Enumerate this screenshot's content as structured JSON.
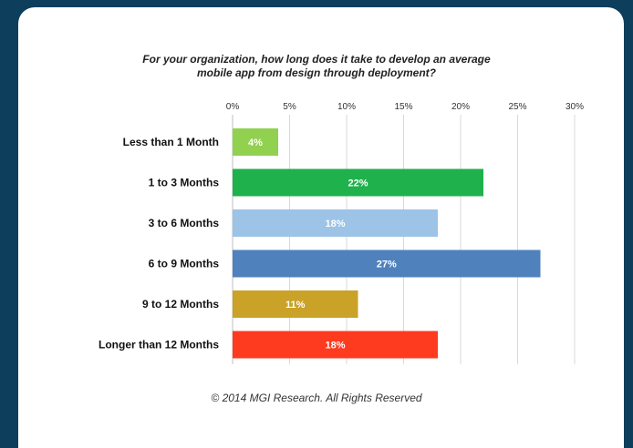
{
  "chart_data": {
    "type": "bar",
    "orientation": "horizontal",
    "title_lines": [
      "For your organization, how long does it take to develop an average",
      "mobile app from design through deployment?"
    ],
    "categories": [
      "Less than 1 Month",
      "1 to 3 Months",
      "3 to 6 Months",
      "6 to 9 Months",
      "9 to 12 Months",
      "Longer than 12 Months"
    ],
    "values": [
      4,
      22,
      18,
      27,
      11,
      18
    ],
    "data_labels": [
      "4%",
      "22%",
      "18%",
      "27%",
      "11%",
      "18%"
    ],
    "colors": [
      "#92d050",
      "#1fb14b",
      "#9dc3e6",
      "#4f81bd",
      "#c9a227",
      "#ff3b1f"
    ],
    "xlim": [
      0,
      30
    ],
    "xticks": [
      0,
      5,
      10,
      15,
      20,
      25,
      30
    ],
    "xtick_labels": [
      "0%",
      "5%",
      "10%",
      "15%",
      "20%",
      "25%",
      "30%"
    ],
    "xaxis_position": "top",
    "grid": true,
    "footer": "© 2014 MGI Research. All Rights Reserved"
  }
}
